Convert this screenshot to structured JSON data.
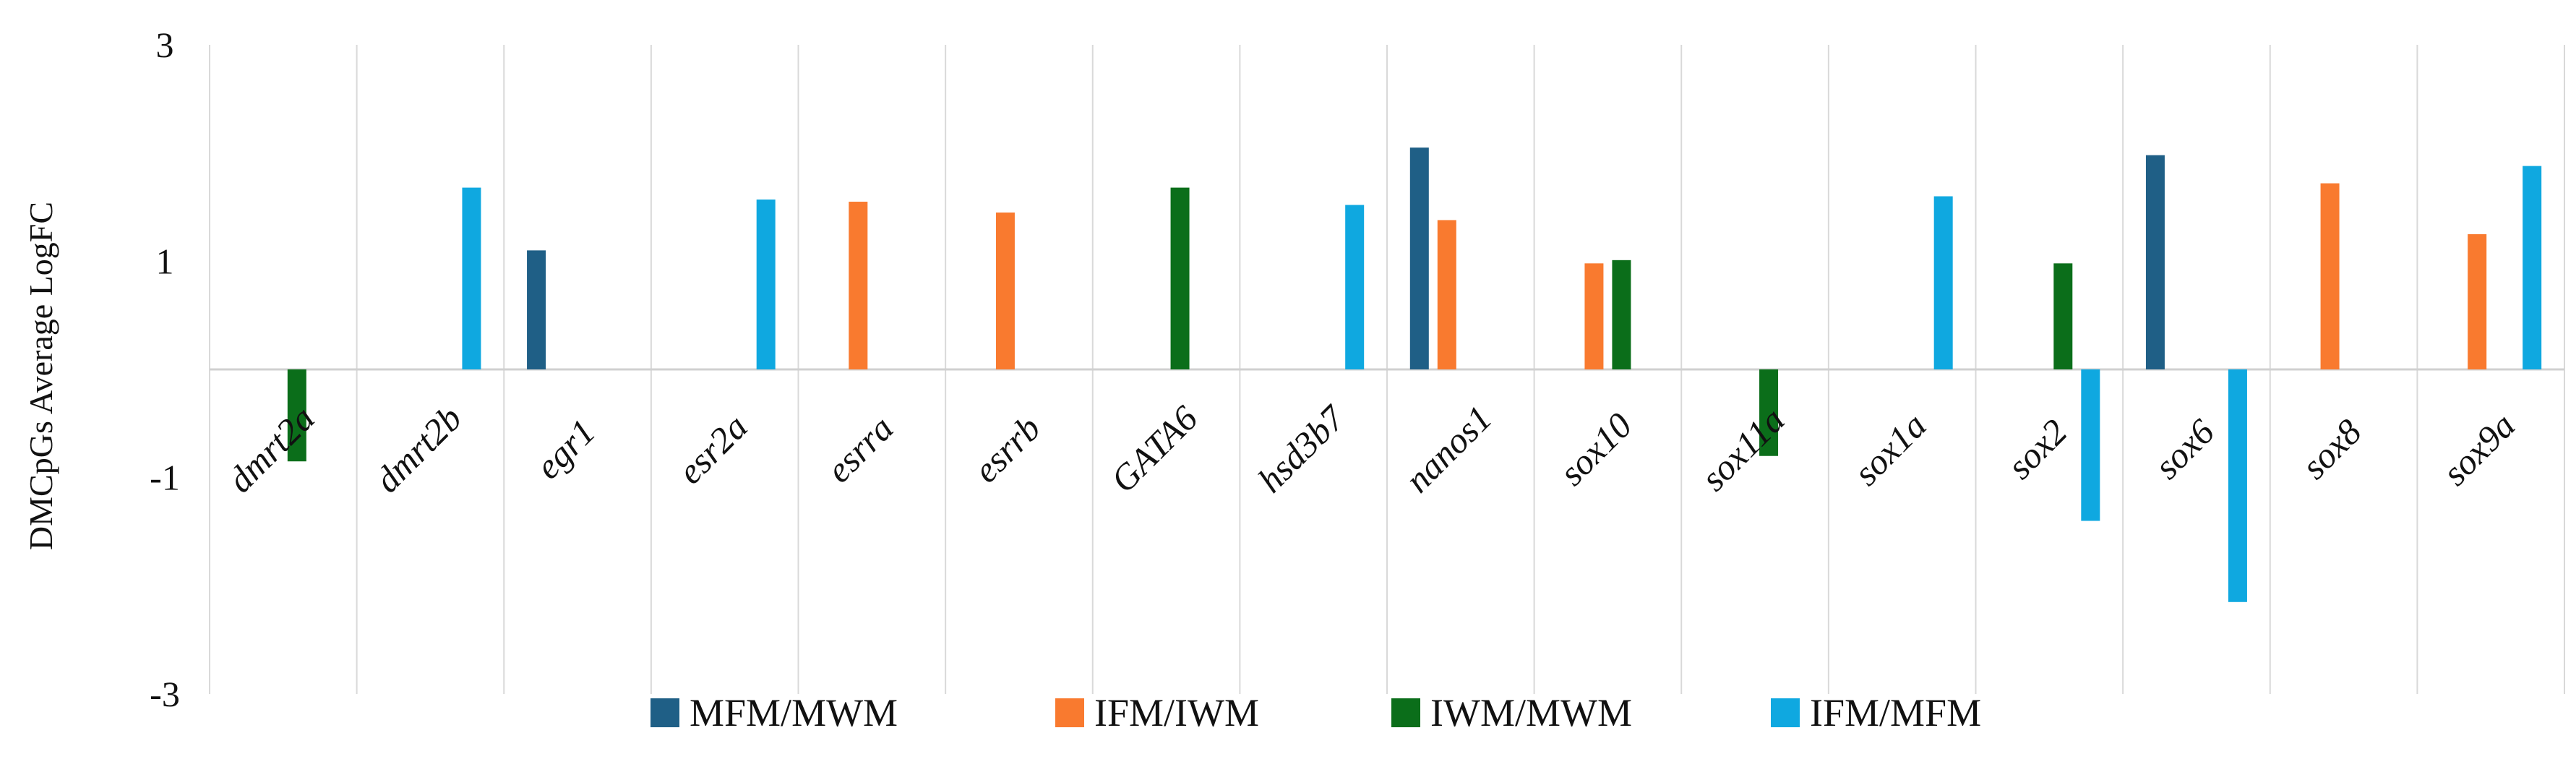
{
  "chart_data": {
    "type": "bar",
    "title": "",
    "xlabel": "",
    "ylabel": "DMCpGs Average LogFC",
    "ylim": [
      -3,
      3
    ],
    "yticks": [
      3,
      1,
      -1,
      -3
    ],
    "ytick_labels": [
      "3",
      "1",
      "-1",
      "-3"
    ],
    "grid": "vertical separators between categories",
    "legend_position": "bottom",
    "categories": [
      "dmrt2a",
      "dmrt2b",
      "egr1",
      "esr2a",
      "esrra",
      "esrrb",
      "GATA6",
      "hsd3b7",
      "nanos1",
      "sox10",
      "sox11a",
      "sox1a",
      "sox2",
      "sox6",
      "sox8",
      "sox9a"
    ],
    "series": [
      {
        "name": "MFM/MWM",
        "color": "#1f5f86",
        "values": [
          null,
          null,
          1.1,
          null,
          null,
          null,
          null,
          null,
          2.05,
          null,
          null,
          null,
          null,
          1.98,
          null,
          null
        ]
      },
      {
        "name": "IFM/IWM",
        "color": "#f97a2f",
        "values": [
          null,
          null,
          null,
          null,
          1.55,
          1.45,
          null,
          null,
          1.38,
          0.98,
          null,
          null,
          null,
          null,
          1.72,
          1.25
        ]
      },
      {
        "name": "IWM/MWM",
        "color": "#0b6e1a",
        "values": [
          -0.85,
          null,
          null,
          null,
          null,
          null,
          1.68,
          null,
          null,
          1.01,
          -0.8,
          null,
          0.98,
          null,
          null,
          null
        ]
      },
      {
        "name": "IFM/MFM",
        "color": "#0fa8e0",
        "values": [
          null,
          1.68,
          null,
          1.57,
          null,
          null,
          null,
          1.52,
          null,
          null,
          null,
          1.6,
          -1.4,
          -2.15,
          null,
          1.88
        ]
      }
    ]
  }
}
